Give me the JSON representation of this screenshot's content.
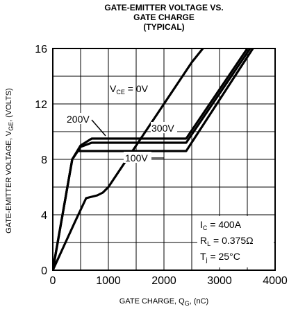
{
  "chart_data": {
    "type": "line",
    "title": [
      "GATE-EMITTER VOLTAGE VS.",
      "GATE CHARGE",
      "(TYPICAL)"
    ],
    "xlabel": {
      "main": "GATE CHARGE, Q",
      "sub": "G",
      "tail": ", (nC)"
    },
    "ylabel": {
      "main": "GATE-EMITTER VOLTAGE, V",
      "sub": "GE",
      "tail": ", (VOLTS)"
    },
    "xlim": [
      0,
      4000
    ],
    "ylim": [
      0,
      16
    ],
    "xticks": [
      0,
      1000,
      2000,
      3000,
      4000
    ],
    "xtick_labels": [
      "0",
      "1000",
      "2000",
      "3000",
      "4000"
    ],
    "yticks": [
      0,
      4,
      8,
      12,
      16
    ],
    "ytick_labels": [
      "0",
      "4",
      "8",
      "12",
      "16"
    ],
    "grid": true,
    "series": [
      {
        "label": "VCE = 0V",
        "points": [
          [
            0,
            0
          ],
          [
            400,
            3.5
          ],
          [
            600,
            5.2
          ],
          [
            800,
            5.4
          ],
          [
            900,
            5.6
          ],
          [
            1000,
            6.0
          ],
          [
            1500,
            9.0
          ],
          [
            2000,
            12.0
          ],
          [
            2500,
            15.0
          ],
          [
            2700,
            16.0
          ]
        ]
      },
      {
        "label": "100V",
        "points": [
          [
            0,
            0
          ],
          [
            350,
            8.0
          ],
          [
            450,
            8.6
          ],
          [
            2400,
            8.6
          ],
          [
            3600,
            16.0
          ]
        ]
      },
      {
        "label": "200V",
        "points": [
          [
            0,
            0
          ],
          [
            350,
            8.0
          ],
          [
            500,
            9.0
          ],
          [
            700,
            9.5
          ],
          [
            2400,
            9.5
          ],
          [
            3500,
            16.0
          ]
        ]
      },
      {
        "label": "300V",
        "points": [
          [
            0,
            0
          ],
          [
            350,
            8.0
          ],
          [
            500,
            8.9
          ],
          [
            700,
            9.2
          ],
          [
            2400,
            9.2
          ],
          [
            3550,
            16.0
          ]
        ]
      }
    ],
    "annotations": {
      "vce0": {
        "pre": "V",
        "sub": "CE",
        "post": " = 0V"
      },
      "v200": "200V",
      "v300": "300V",
      "v100": "100V",
      "ic": {
        "pre": "I",
        "sub": "C",
        "post": " = 400A"
      },
      "rl": {
        "pre": "R",
        "sub": "L",
        "post": " = 0.375Ω"
      },
      "tj": {
        "pre": "T",
        "sub": "j",
        "post": " = 25°C"
      }
    }
  }
}
